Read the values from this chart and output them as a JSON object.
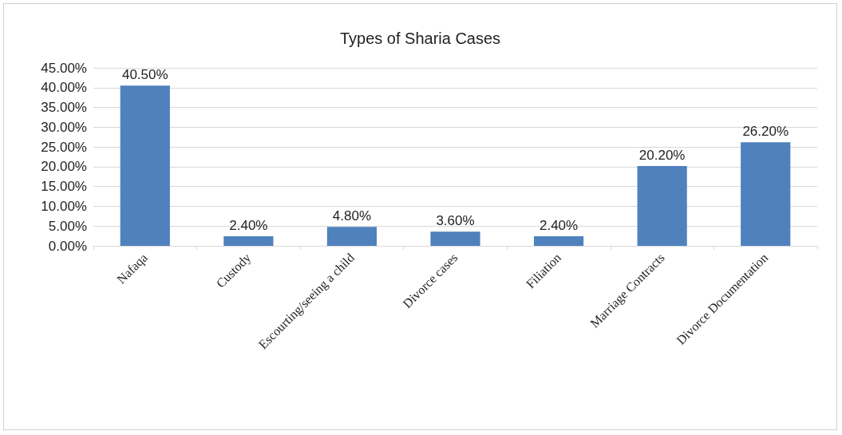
{
  "chart_data": {
    "type": "bar",
    "title": "Types of Sharia Cases",
    "categories": [
      "Nafaqa",
      "Custody",
      "Escourting/seeing a child",
      "Divorce cases",
      "Filiation",
      "Marriage Contracts",
      "Divorce Documentation"
    ],
    "values": [
      40.5,
      2.4,
      4.8,
      3.6,
      2.4,
      20.2,
      26.2
    ],
    "value_labels": [
      "40.50%",
      "2.40%",
      "4.80%",
      "3.60%",
      "2.40%",
      "20.20%",
      "26.20%"
    ],
    "color": "#4f81bd",
    "ylim": [
      0,
      45
    ],
    "yticks": [
      {
        "value": 0,
        "label": "0.00%"
      },
      {
        "value": 5,
        "label": "5.00%"
      },
      {
        "value": 10,
        "label": "10.00%"
      },
      {
        "value": 15,
        "label": "15.00%"
      },
      {
        "value": 20,
        "label": "20.00%"
      },
      {
        "value": 25,
        "label": "25.00%"
      },
      {
        "value": 30,
        "label": "30.00%"
      },
      {
        "value": 35,
        "label": "35.00%"
      },
      {
        "value": 40,
        "label": "40.00%"
      },
      {
        "value": 45,
        "label": "45.00%"
      }
    ],
    "grid": "y"
  }
}
